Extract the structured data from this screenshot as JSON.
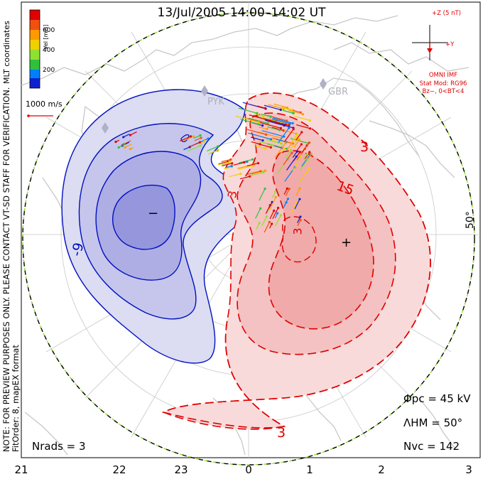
{
  "title": "13/Jul/2005  14:00–14:02  UT",
  "note_line1": "NOTE: FOR PREVIEW PURPOSES ONLY. PLEASE CONTACT VT-SD STAFF FOR VERIFICATION.",
  "note_line2": "FitOrder: 8,  mapEX format",
  "mlt_label": "MLT coordinates",
  "colorbar": {
    "label": "Vel [m/s]",
    "ticks": [
      "600",
      "400",
      "200"
    ],
    "colors": [
      "#e00000",
      "#f05010",
      "#ff9a00",
      "#f0d000",
      "#90e030",
      "#30c040",
      "#0080ff",
      "#1020d0"
    ]
  },
  "scale_vector_label": "1000 m/s",
  "imf": {
    "z_label": "+Z (5 nT)",
    "y_label": "+Y",
    "source": "OMNI IMF",
    "model": "Stat Mod: RG96",
    "condition": "Bz−, 0<BT<4"
  },
  "stations": [
    "PYK",
    "GBR"
  ],
  "lat_label": "50°",
  "contour_labels": [
    "-9",
    "3",
    "15",
    "3",
    "3",
    "3"
  ],
  "min_marker": "−",
  "max_marker": "+",
  "stats": {
    "phi_pc": "Φpc = 45 kV",
    "lambda_hm": "ΛHM = 50°",
    "n_vc": "Nvc = 142",
    "n_rads": "Nrads = 3"
  },
  "x_ticks": [
    "21",
    "22",
    "23",
    "0",
    "1",
    "2",
    "3"
  ],
  "colors": {
    "positive": "#e00000",
    "negative": "#0010c0",
    "imf_red": "#e00000",
    "boundary_green": "#90e030"
  }
}
